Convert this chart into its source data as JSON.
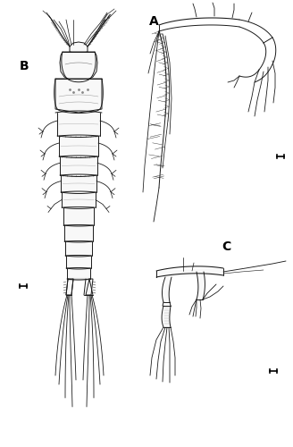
{
  "background_color": "#ffffff",
  "label_A": "A",
  "label_B": "B",
  "label_C": "C",
  "label_fontsize": 10,
  "label_color": "#000000",
  "line_color": "#1a1a1a",
  "line_width": 0.7,
  "fig_width": 3.28,
  "fig_height": 5.0,
  "dpi": 100,
  "scale_bar_color": "#000000",
  "scale_bar_lw": 1.2,
  "body_color": "#f8f8f8",
  "shading_color": "#cccccc"
}
